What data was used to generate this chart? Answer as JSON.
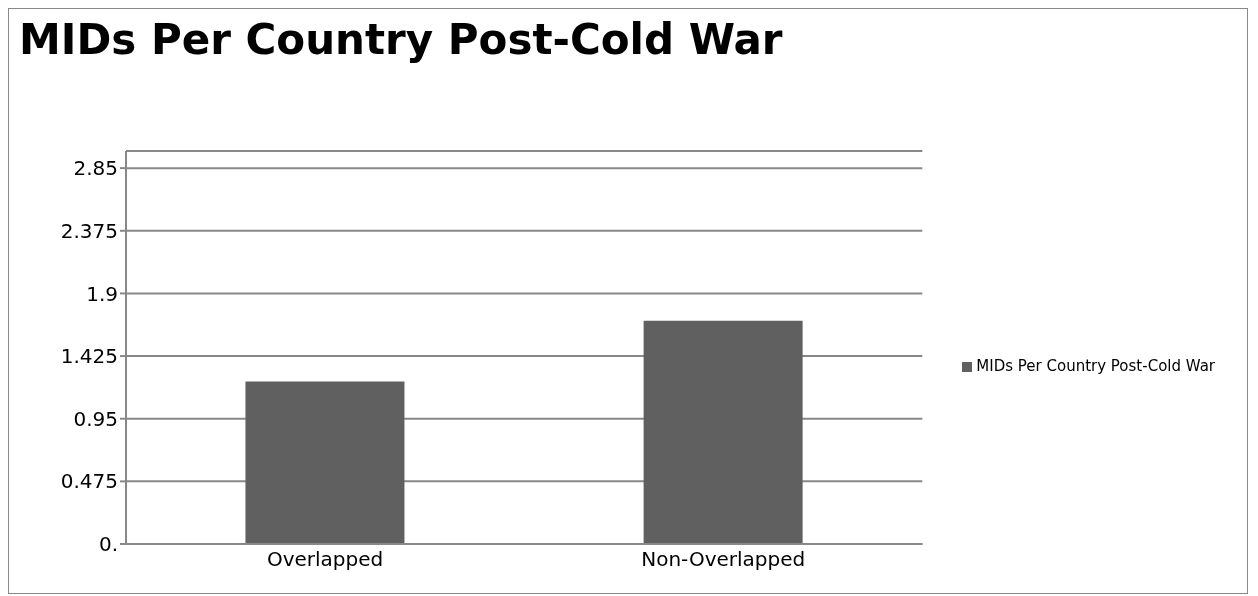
{
  "chart_data": {
    "type": "bar",
    "title": "MIDs Per Country Post-Cold War",
    "categories": [
      "Overlapped",
      "Non-Overlapped"
    ],
    "series": [
      {
        "name": "MIDs Per Country Post-Cold War",
        "color": "#606060",
        "values": [
          1.232,
          1.693
        ]
      }
    ],
    "ylim": [
      0,
      2.98
    ],
    "yticks": [
      {
        "value": 0,
        "label": "0."
      },
      0.475,
      0.95,
      1.425,
      1.9,
      2.375,
      2.85
    ],
    "grid": "y",
    "legend": "right"
  }
}
